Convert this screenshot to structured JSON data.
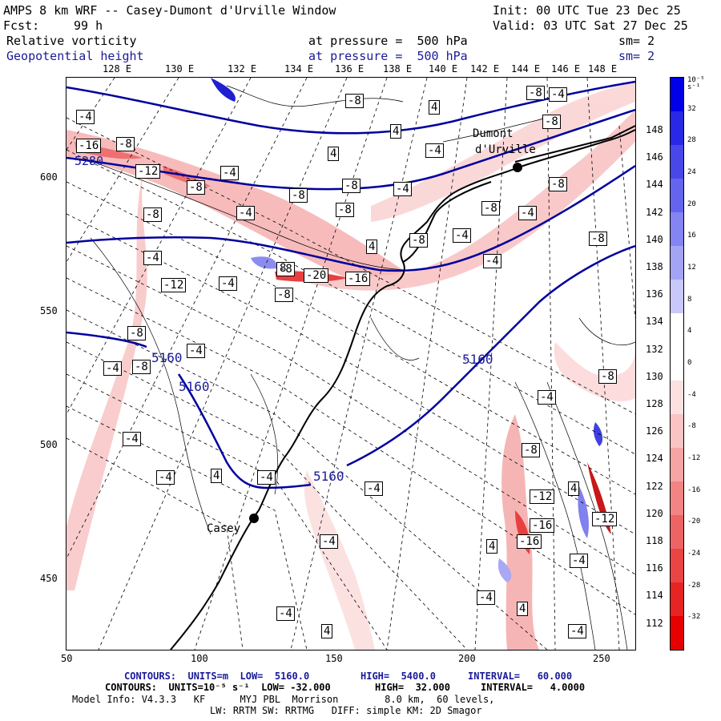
{
  "header": {
    "title": "AMPS 8 km WRF -- Casey-Dumont d'Urville Window",
    "init": "Init: 00 UTC Tue 23 Dec 25",
    "fcst_label": "Fcst:",
    "fcst_value": "99 h",
    "valid": "Valid: 03 UTC Sat 27 Dec 25",
    "field1_name": "Relative vorticity",
    "field1_level": "at pressure =  500 hPa",
    "field1_sm": "sm= 2",
    "field2_name": "Geopotential height",
    "field2_level": "at pressure =  500 hPa",
    "field2_sm": "sm= 2"
  },
  "lon_top": [
    "128 E",
    "130 E",
    "132 E",
    "134 E",
    "136 E",
    "138 E",
    "140 E",
    "142 E",
    "144 E",
    "146 E",
    "148 E"
  ],
  "lon_right": [
    "148 E",
    "146 E",
    "144 E",
    "142 E",
    "140 E",
    "138 E",
    "136 E",
    "134 E",
    "132 E",
    "130 E",
    "128 E",
    "126 E",
    "124 E",
    "122 E",
    "120 E",
    "118 E",
    "116 E",
    "114 E",
    "112 E"
  ],
  "x_axis": [
    "50",
    "100",
    "150",
    "200",
    "250"
  ],
  "y_axis": [
    "600",
    "550",
    "500",
    "450"
  ],
  "colorbar": {
    "units": "10⁻⁵ s⁻¹",
    "labels": [
      "32",
      "28",
      "24",
      "20",
      "16",
      "12",
      "8",
      "4",
      "0",
      "-4",
      "-8",
      "-12",
      "-16",
      "-20",
      "-24",
      "-28",
      "-32"
    ],
    "colors": [
      "#0000e6",
      "#2828e6",
      "#4848ea",
      "#6464ee",
      "#8484f2",
      "#a4a4f6",
      "#c8c8fa",
      "#ffffff",
      "#ffffff",
      "#fde0e0",
      "#fac4c4",
      "#f6a4a4",
      "#f28484",
      "#ee6464",
      "#ea4444",
      "#e62424",
      "#e60000"
    ]
  },
  "map_labels": {
    "places": [
      "Dumont",
      "d'Urville",
      "Casey"
    ],
    "height_contours": [
      "5280",
      "5160",
      "5160",
      "5160",
      "5160"
    ],
    "vort_labels": [
      "-4",
      "-16",
      "-8",
      "-12",
      "-8",
      "-4",
      "-8",
      "-8",
      "-8",
      "-4",
      "-8",
      "-8",
      "-4",
      "-12",
      "-4",
      "-8",
      "-20",
      "-16",
      "-8",
      "-8",
      "-4",
      "-4",
      "-8",
      "-4",
      "-4",
      "-4",
      "-4",
      "-4",
      "4",
      "4",
      "4",
      "-4",
      "-4",
      "-8",
      "-12",
      "-16",
      "-16",
      "-12",
      "4",
      "-4",
      "-4",
      "4",
      "4",
      "-4",
      "8",
      "-4",
      "4",
      "4",
      "-4",
      "-8",
      "-8",
      "-4",
      "-8",
      "-8",
      "-4",
      "-8",
      "-4",
      "4",
      "-8",
      "-4",
      "-8"
    ]
  },
  "footer": {
    "line1_a": "CONTOURS:  UNITS=m  LOW=  5160.0",
    "line1_b": "HIGH=  5400.0",
    "line1_c": "INTERVAL=   60.000",
    "line2_a": "CONTOURS:  UNITS=10⁻⁵ s⁻¹  LOW= -32.000",
    "line2_b": "HIGH=  32.000",
    "line2_c": "INTERVAL=   4.0000",
    "line3": "Model Info: V4.3.3   KF      MYJ PBL  Morrison        8.0 km,  60 levels,",
    "line4": "LW: RRTM SW: RRTMG   DIFF: simple KM: 2D Smagor"
  }
}
